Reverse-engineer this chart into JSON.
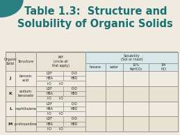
{
  "title_line1": "Table 1.3:  Structure and",
  "title_line2": "Solubility of Organic Solids",
  "title_color": "#1a7070",
  "title_fontsize": 10.5,
  "bg_color": "#f0ebe0",
  "teal_accent": "#2a8080",
  "rows": [
    {
      "letter": "J",
      "compound": "benzoic\nacid",
      "imf": [
        "LDF",
        "D-D",
        "HBA",
        "HBD",
        "I-O"
      ]
    },
    {
      "letter": "K",
      "compound": "sodium\nbenzoate",
      "imf": [
        "LDF",
        "D-D",
        "HBA",
        "HBD",
        "I-O"
      ]
    },
    {
      "letter": "L",
      "compound": "naphthalene",
      "imf": [
        "LDF",
        "D-D",
        "HBA",
        "HBD",
        "I-O"
      ]
    },
    {
      "letter": "M",
      "compound": "p-nitroaniline",
      "imf": [
        "LDF",
        "D-D",
        "HBA",
        "HBD",
        "I-O"
      ]
    }
  ],
  "figsize": [
    2.59,
    1.94
  ],
  "dpi": 100
}
